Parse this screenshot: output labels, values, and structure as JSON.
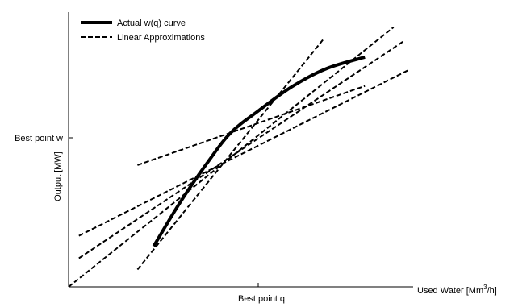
{
  "chart_data": {
    "type": "line",
    "title": "",
    "xlabel": "Used Water [Mm",
    "xlabel_sup": "3",
    "xlabel_tail": "/h]",
    "ylabel": "Output [MW]",
    "xlim": [
      0,
      1
    ],
    "ylim": [
      0,
      1
    ],
    "x_ticks": [
      {
        "value": 0.55,
        "label": "Best point q"
      }
    ],
    "y_ticks": [
      {
        "value": 0.587,
        "label": "Best point w"
      }
    ],
    "grid": false,
    "legend_position": "top-left",
    "series": [
      {
        "name": "Actual w(q) curve",
        "style": "solid",
        "points": [
          [
            0.247,
            0.148
          ],
          [
            0.32,
            0.3
          ],
          [
            0.4,
            0.447
          ],
          [
            0.47,
            0.56
          ],
          [
            0.55,
            0.64
          ],
          [
            0.65,
            0.73
          ],
          [
            0.75,
            0.795
          ],
          [
            0.86,
            0.836
          ]
        ]
      },
      {
        "name": "Linear Approximations",
        "style": "dashed",
        "lines": [
          [
            [
              0.0,
              0.0
            ],
            [
              0.943,
              0.945
            ]
          ],
          [
            [
              0.03,
              0.104
            ],
            [
              0.97,
              0.892
            ]
          ],
          [
            [
              0.03,
              0.186
            ],
            [
              0.985,
              0.788
            ]
          ],
          [
            [
              0.2,
              0.443
            ],
            [
              0.86,
              0.731
            ]
          ],
          [
            [
              0.2,
              0.063
            ],
            [
              0.74,
              0.902
            ]
          ]
        ]
      }
    ]
  }
}
